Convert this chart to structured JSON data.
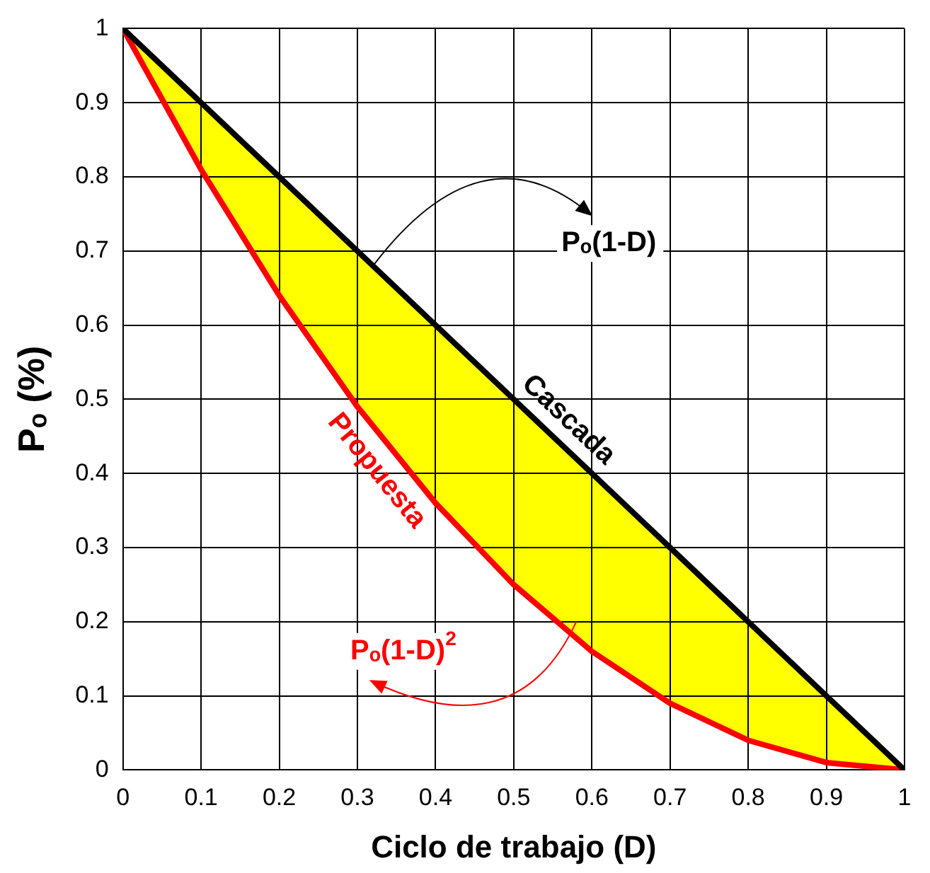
{
  "chart_data": {
    "type": "line",
    "xlabel": "Ciclo de trabajo (D)",
    "ylabel": "Pₒ (%)",
    "x": [
      0,
      0.1,
      0.2,
      0.3,
      0.4,
      0.5,
      0.6,
      0.7,
      0.8,
      0.9,
      1
    ],
    "series": [
      {
        "name": "Cascada",
        "color": "#000000",
        "values": [
          1,
          0.9,
          0.8,
          0.7,
          0.6,
          0.5,
          0.4,
          0.3,
          0.2,
          0.1,
          0
        ]
      },
      {
        "name": "Propuesta",
        "color": "#ff0000",
        "values": [
          1,
          0.81,
          0.64,
          0.49,
          0.36,
          0.25,
          0.16,
          0.09,
          0.04,
          0.01,
          0
        ]
      }
    ],
    "annotations": [
      {
        "text": "Pₒ(1-D)",
        "x": 0.32,
        "y": 0.68
      },
      "Pₒ(1-D)$^{2}$"
    ],
    "xlim": [
      0,
      1
    ],
    "ylim": [
      0,
      1
    ],
    "xticks": [
      0,
      0.1,
      0.2,
      0.3,
      0.4,
      0.5,
      0.6,
      0.7,
      0.8,
      0.9,
      1
    ],
    "yticks": [
      0,
      0.1,
      0.2,
      0.3,
      0.4,
      0.5,
      0.6,
      0.7,
      0.8,
      0.9,
      1
    ],
    "grid": true,
    "legend": false,
    "marker": "none",
    "line_style": "solid"
  }
}
